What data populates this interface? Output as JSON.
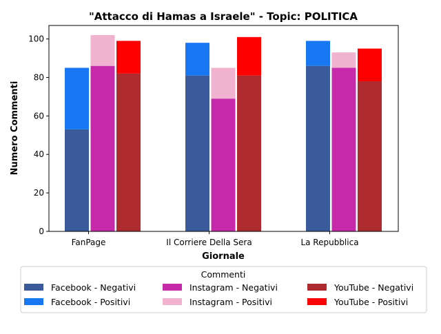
{
  "chart_data": {
    "type": "bar",
    "title": "\"Attacco di Hamas a Israele\" - Topic: POLITICA",
    "xlabel": "Giornale",
    "ylabel": "Numero Commenti",
    "categories": [
      "FanPage",
      "Il Corriere Della Sera",
      "La Repubblica"
    ],
    "ylim": [
      0,
      107
    ],
    "yticks": [
      "0",
      "20",
      "40",
      "60",
      "80",
      "100"
    ],
    "grid": false,
    "stacked_groups": true,
    "series": [
      {
        "name": "Facebook - Negativi",
        "group": "Facebook",
        "color": "#3a5a9c",
        "values": [
          53,
          81,
          86
        ]
      },
      {
        "name": "Facebook - Positivi",
        "group": "Facebook",
        "color": "#1877f2",
        "values": [
          32,
          17,
          13
        ]
      },
      {
        "name": "Instagram - Negativi",
        "group": "Instagram",
        "color": "#c62aaa",
        "values": [
          86,
          69,
          85
        ]
      },
      {
        "name": "Instagram - Positivi",
        "group": "Instagram",
        "color": "#f0b2cf",
        "values": [
          16,
          16,
          8
        ]
      },
      {
        "name": "YouTube - Negativi",
        "group": "YouTube",
        "color": "#ad2a2f",
        "values": [
          82,
          81,
          78
        ]
      },
      {
        "name": "YouTube - Positivi",
        "group": "YouTube",
        "color": "#ff0000",
        "values": [
          17,
          20,
          17
        ]
      }
    ],
    "legend": {
      "title": "Commenti",
      "placement": "bottom-center",
      "columns": 3
    }
  }
}
